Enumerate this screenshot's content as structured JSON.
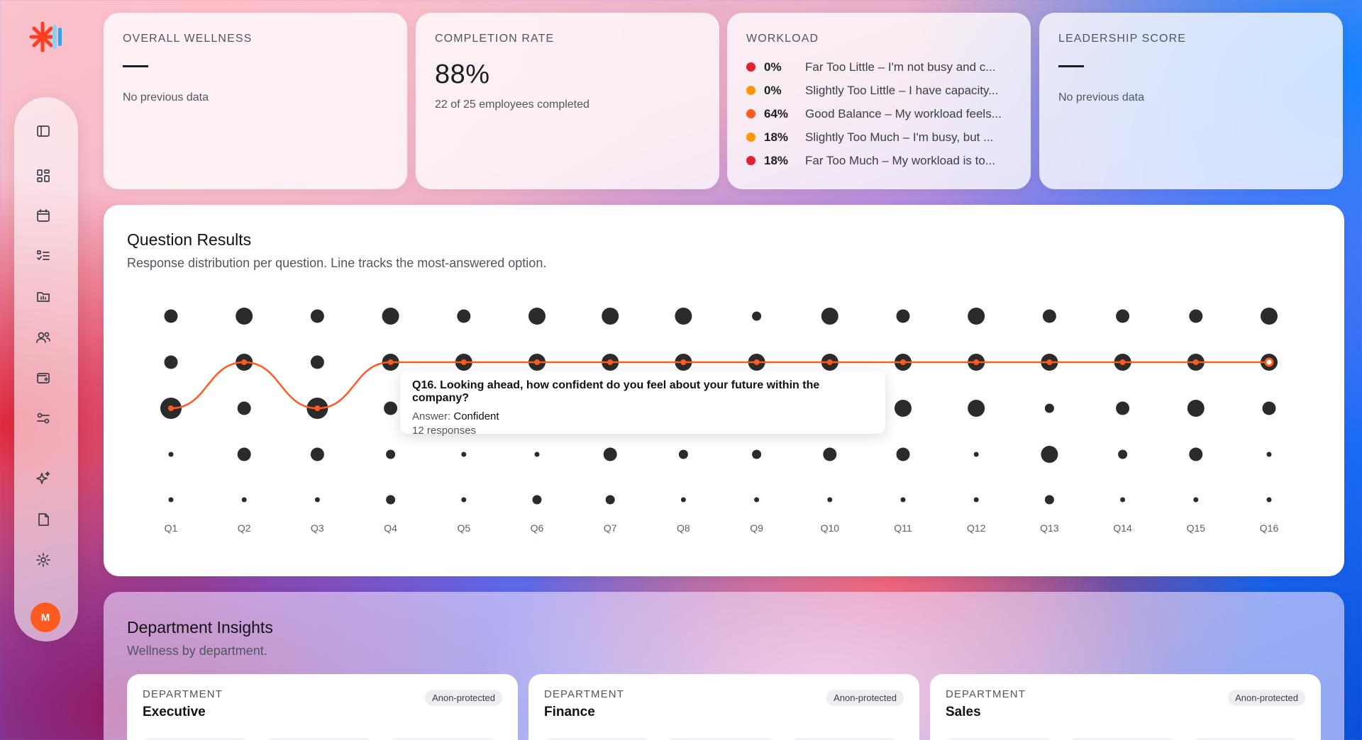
{
  "app": {
    "logo_icon": "brand-logo-icon",
    "avatar_initial": "M",
    "accent": "#ff5a1f"
  },
  "sidebar": {
    "items": [
      {
        "name": "sidebar-toggle",
        "icon": "panel-left-icon"
      },
      {
        "name": "dashboard",
        "icon": "grid-icon"
      },
      {
        "name": "calendar",
        "icon": "calendar-icon"
      },
      {
        "name": "checklist",
        "icon": "checklist-icon"
      },
      {
        "name": "reports",
        "icon": "bar-chart-folder-icon"
      },
      {
        "name": "people",
        "icon": "users-icon"
      },
      {
        "name": "wallet",
        "icon": "wallet-icon"
      },
      {
        "name": "integrations",
        "icon": "sliders-icon"
      },
      {
        "name": "ai-insights",
        "icon": "sparkles-icon"
      },
      {
        "name": "documents",
        "icon": "file-icon"
      },
      {
        "name": "settings",
        "icon": "gear-icon"
      }
    ]
  },
  "stats": {
    "wellness": {
      "label": "OVERALL WELLNESS",
      "value": "—",
      "sub": "No previous data"
    },
    "completion": {
      "label": "COMPLETION RATE",
      "value": "88%",
      "sub": "22 of 25 employees completed"
    },
    "workload": {
      "label": "WORKLOAD",
      "rows": [
        {
          "pct": "0%",
          "text": "Far Too Little – I'm not busy and c...",
          "color": "#e0242f"
        },
        {
          "pct": "0%",
          "text": "Slightly Too Little – I have capacity...",
          "color": "#ff9800"
        },
        {
          "pct": "64%",
          "text": "Good Balance – My workload feels...",
          "color": "#ff5a1f"
        },
        {
          "pct": "18%",
          "text": "Slightly Too Much – I'm busy, but ...",
          "color": "#ff9800"
        },
        {
          "pct": "18%",
          "text": "Far Too Much – My workload is to...",
          "color": "#e0242f"
        }
      ]
    },
    "leadership": {
      "label": "LEADERSHIP SCORE",
      "value": "—",
      "sub": "No previous data"
    }
  },
  "question_results": {
    "title": "Question Results",
    "subtitle": "Response distribution per question. Line tracks the most-answered option.",
    "tooltip": {
      "title": "Q16. Looking ahead, how confident do you feel about your future within the company?",
      "answer_label": "Answer:",
      "answer": "Confident",
      "responses": "12 responses"
    }
  },
  "chart_data": {
    "type": "scatter",
    "title": "Question Results",
    "categories": [
      "Q1",
      "Q2",
      "Q3",
      "Q4",
      "Q5",
      "Q6",
      "Q7",
      "Q8",
      "Q9",
      "Q10",
      "Q11",
      "Q12",
      "Q13",
      "Q14",
      "Q15",
      "Q16"
    ],
    "rows": 5,
    "dot_sizes": [
      [
        3,
        4,
        3,
        4,
        3,
        4,
        4,
        4,
        2,
        4,
        3,
        4,
        3,
        3,
        3,
        4
      ],
      [
        3,
        4,
        3,
        4,
        4,
        4,
        4,
        4,
        4,
        4,
        4,
        4,
        4,
        4,
        4,
        4
      ],
      [
        5,
        3,
        5,
        3,
        0,
        0,
        0,
        0,
        0,
        0,
        4,
        4,
        2,
        3,
        4,
        3
      ],
      [
        1,
        3,
        3,
        2,
        1,
        1,
        3,
        2,
        2,
        3,
        3,
        1,
        4,
        2,
        3,
        1
      ],
      [
        1,
        1,
        1,
        2,
        1,
        2,
        2,
        1,
        1,
        1,
        1,
        1,
        2,
        1,
        1,
        1
      ]
    ],
    "most_answered_row": [
      2,
      1,
      2,
      1,
      1,
      1,
      1,
      1,
      1,
      1,
      1,
      1,
      1,
      1,
      1,
      1
    ],
    "line_color": "#ff5a1f",
    "dot_color": "#2b2b2b",
    "highlighted_index": 15
  },
  "department_insights": {
    "title": "Department Insights",
    "subtitle": "Wellness by department.",
    "departments": [
      {
        "label": "DEPARTMENT",
        "name": "Executive",
        "badge": "Anon-protected"
      },
      {
        "label": "DEPARTMENT",
        "name": "Finance",
        "badge": "Anon-protected"
      },
      {
        "label": "DEPARTMENT",
        "name": "Sales",
        "badge": "Anon-protected"
      }
    ]
  }
}
